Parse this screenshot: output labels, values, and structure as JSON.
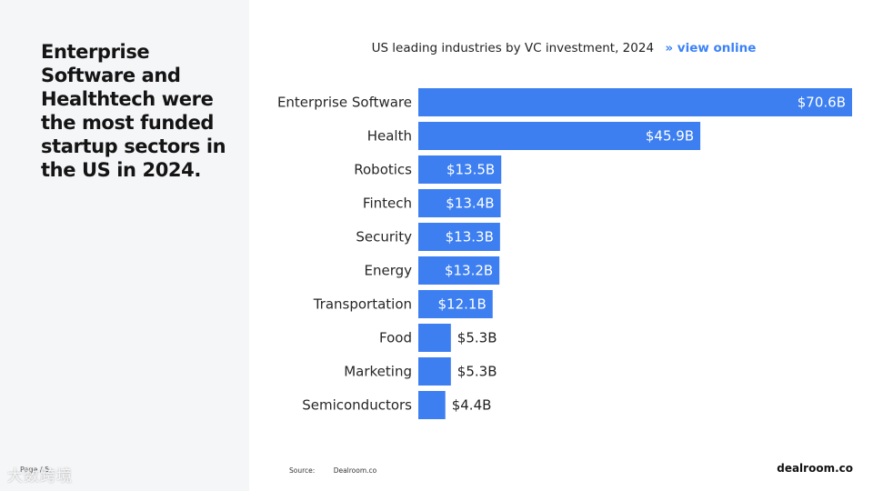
{
  "headline": "Enterprise Software and Healthtech were the most funded startup sectors in the US in 2024.",
  "chart_title": "US leading industries by VC investment, 2024",
  "view_online": "» view online",
  "source_label": "Source:",
  "source_value": "Dealroom.co",
  "brand": "dealroom.co",
  "page_label": "Page / 5",
  "watermark": "大数跨境",
  "colors": {
    "bar": "#3d7ff0",
    "link": "#3b82f6",
    "panel": "#f5f6f8"
  },
  "chart_data": {
    "type": "bar",
    "orientation": "horizontal",
    "title": "US leading industries by VC investment, 2024",
    "categories": [
      "Enterprise Software",
      "Health",
      "Robotics",
      "Fintech",
      "Security",
      "Energy",
      "Transportation",
      "Food",
      "Marketing",
      "Semiconductors"
    ],
    "values": [
      70.6,
      45.9,
      13.5,
      13.4,
      13.3,
      13.2,
      12.1,
      5.3,
      5.3,
      4.4
    ],
    "labels": [
      "$70.6B",
      "$45.9B",
      "$13.5B",
      "$13.4B",
      "$13.3B",
      "$13.2B",
      "$12.1B",
      "$5.3B",
      "$5.3B",
      "$4.4B"
    ],
    "unit": "USD billions",
    "xlim": [
      0,
      70.6
    ],
    "xlabel": "",
    "ylabel": "",
    "grid": false
  }
}
